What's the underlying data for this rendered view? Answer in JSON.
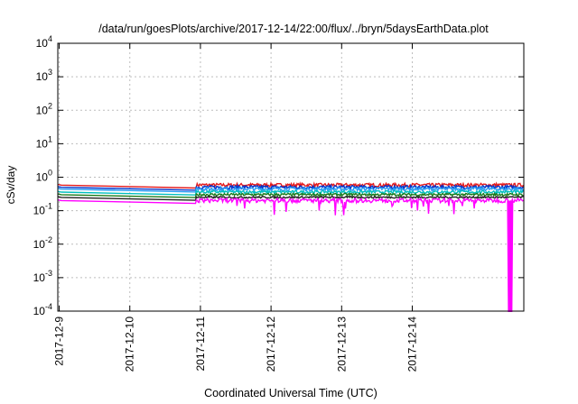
{
  "chart_data": {
    "type": "line",
    "title": "/data/run/goesPlots/archive/2017-12-14/22:00/flux/../bryn/5daysEarthData.plot",
    "xlabel": "Coordinated Universal Time (UTC)",
    "ylabel": "cSv/day",
    "yscale": "log",
    "ylim_exponents": [
      -4,
      4
    ],
    "y_tick_exponents": [
      -4,
      -3,
      -2,
      -1,
      0,
      1,
      2,
      3,
      4
    ],
    "x_unit": "days",
    "xlim": [
      0,
      6.6
    ],
    "x_ticks": [
      {
        "x": 0.02,
        "label": "2017-12-9"
      },
      {
        "x": 1.02,
        "label": "2017-12-10"
      },
      {
        "x": 2.02,
        "label": "2017-12-11"
      },
      {
        "x": 3.02,
        "label": "2017-12-12"
      },
      {
        "x": 4.02,
        "label": "2017-12-13"
      },
      {
        "x": 5.02,
        "label": "2017-12-14"
      }
    ],
    "grid": true,
    "gap": [
      0.05,
      1.95
    ],
    "series": [
      {
        "color": "#e41a1c",
        "level": 0.58,
        "noise": 0.1,
        "dips": false
      },
      {
        "color": "#0033cc",
        "level": 0.5,
        "noise": 0.1,
        "dips": false
      },
      {
        "color": "#2a9df4",
        "level": 0.44,
        "noise": 0.1,
        "dips": false
      },
      {
        "color": "#00bfbf",
        "level": 0.36,
        "noise": 0.08,
        "dips": false
      },
      {
        "color": "#1a7a1a",
        "level": 0.3,
        "noise": 0.07,
        "dips": false
      },
      {
        "color": "#222222",
        "level": 0.25,
        "noise": 0.05,
        "dips": false
      },
      {
        "color": "#ff00ff",
        "level": 0.2,
        "noise": 0.12,
        "dips": true
      }
    ],
    "magenta_dropout": {
      "x": 6.4,
      "min": 0.0001
    }
  }
}
